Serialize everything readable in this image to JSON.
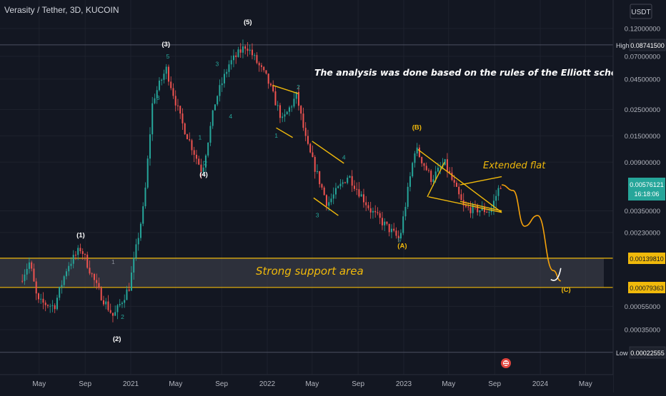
{
  "header": {
    "title": "Verasity / Tether, 3D, KUCOIN"
  },
  "price_axis": {
    "currency": "USDT",
    "ticks": [
      "0.12000000",
      "0.07000000",
      "0.04500000",
      "0.02500000",
      "0.01500000",
      "0.00900000",
      "0.00350000",
      "0.00230000",
      "0.00055000",
      "0.00035000"
    ],
    "high": {
      "label": "High",
      "value": "0.08741500"
    },
    "low": {
      "label": "Low",
      "value": "0.00022555"
    },
    "last": {
      "value": "0.00576121",
      "countdown": "16:18:06"
    },
    "support_upper": "0.00139810",
    "support_lower": "0.00079363"
  },
  "time_axis": {
    "ticks": [
      "May",
      "Sep",
      "2021",
      "May",
      "Sep",
      "2022",
      "May",
      "Sep",
      "2023",
      "May",
      "Sep",
      "2024",
      "May"
    ]
  },
  "chart_data": {
    "type": "candlestick",
    "symbol": "Verasity / Tether",
    "interval": "3D",
    "exchange": "KUCOIN",
    "y_scale": "log",
    "ylim": [
      0.0002,
      0.15
    ],
    "x_range": [
      "2020-04",
      "2024-06"
    ],
    "price_path": [
      [
        "2020-03-15",
        0.0009
      ],
      [
        "2020-04-10",
        0.0013
      ],
      [
        "2020-05-01",
        0.0006
      ],
      [
        "2020-06-15",
        0.00055
      ],
      [
        "2020-07-20",
        0.0012
      ],
      [
        "2020-08-25",
        0.0017
      ],
      [
        "2020-10-10",
        0.00075
      ],
      [
        "2020-11-20",
        0.00045
      ],
      [
        "2021-01-01",
        0.0008
      ],
      [
        "2021-02-10",
        0.004
      ],
      [
        "2021-03-05",
        0.03
      ],
      [
        "2021-04-10",
        0.055
      ],
      [
        "2021-05-20",
        0.02
      ],
      [
        "2021-07-15",
        0.0075
      ],
      [
        "2021-08-20",
        0.03
      ],
      [
        "2021-09-25",
        0.06
      ],
      [
        "2021-11-10",
        0.0874
      ],
      [
        "2022-01-05",
        0.045
      ],
      [
        "2022-02-15",
        0.02
      ],
      [
        "2022-03-25",
        0.033
      ],
      [
        "2022-04-20",
        0.013
      ],
      [
        "2022-06-15",
        0.004
      ],
      [
        "2022-08-10",
        0.007
      ],
      [
        "2022-10-10",
        0.0035
      ],
      [
        "2022-12-25",
        0.002
      ],
      [
        "2023-02-05",
        0.012
      ],
      [
        "2023-03-20",
        0.0065
      ],
      [
        "2023-04-25",
        0.0088
      ],
      [
        "2023-06-15",
        0.0037
      ],
      [
        "2023-08-25",
        0.0035
      ],
      [
        "2023-09-20",
        0.0058
      ]
    ],
    "high": 0.087415,
    "low": 0.00022555,
    "last": 0.00576121,
    "support_zone": [
      0.00079363,
      0.0013981
    ],
    "projection": [
      [
        "2023-09-20",
        0.0058
      ],
      [
        "2023-10-20",
        0.0052
      ],
      [
        "2023-11-20",
        0.0026
      ],
      [
        "2023-12-25",
        0.0032
      ],
      [
        "2024-02-05",
        0.0011
      ],
      [
        "2024-02-25",
        0.0009
      ]
    ],
    "annotations": {
      "note": "The analysis was done based on the rules of the Elliott school and volume analysis",
      "pattern": "Extended flat",
      "support": "Strong support area"
    },
    "wave_labels": [
      {
        "text": "(1)",
        "date": "2020-08-20",
        "price": 0.0021,
        "color": "#ffffff"
      },
      {
        "text": "(2)",
        "date": "2020-11-25",
        "price": 0.00028,
        "color": "#ffffff"
      },
      {
        "text": "(3)",
        "date": "2021-04-05",
        "price": 0.085,
        "color": "#ffffff"
      },
      {
        "text": "(4)",
        "date": "2021-07-15",
        "price": 0.0068,
        "color": "#ffffff"
      },
      {
        "text": "(5)",
        "date": "2021-11-10",
        "price": 0.13,
        "color": "#ffffff"
      },
      {
        "text": "(A)",
        "date": "2022-12-28",
        "price": 0.0017,
        "color": "#f0b90b"
      },
      {
        "text": "(B)",
        "date": "2023-02-05",
        "price": 0.017,
        "color": "#f0b90b"
      },
      {
        "text": "(C)",
        "date": "2024-03-10",
        "price": 0.00073,
        "color": "#f0b90b"
      },
      {
        "text": "1",
        "date": "2020-11-15",
        "price": 0.00125,
        "color": "#8a8e99"
      },
      {
        "text": "2",
        "date": "2020-12-10",
        "price": 0.00043,
        "color": "#26a69a"
      },
      {
        "text": "3",
        "date": "2021-03-15",
        "price": 0.03,
        "color": "#26a69a"
      },
      {
        "text": "5",
        "date": "2021-04-10",
        "price": 0.067,
        "color": "#26a69a"
      },
      {
        "text": "1",
        "date": "2021-07-05",
        "price": 0.014,
        "color": "#26a69a"
      },
      {
        "text": "2",
        "date": "2021-07-20",
        "price": 0.0085,
        "color": "#26a69a"
      },
      {
        "text": "3",
        "date": "2021-08-20",
        "price": 0.058,
        "color": "#26a69a"
      },
      {
        "text": "4",
        "date": "2021-09-25",
        "price": 0.021,
        "color": "#26a69a"
      },
      {
        "text": "1",
        "date": "2022-01-25",
        "price": 0.0145,
        "color": "#26a69a"
      },
      {
        "text": "2",
        "date": "2022-03-25",
        "price": 0.037,
        "color": "#26a69a"
      },
      {
        "text": "3",
        "date": "2022-05-15",
        "price": 0.0031,
        "color": "#26a69a"
      },
      {
        "text": "4",
        "date": "2022-07-25",
        "price": 0.0095,
        "color": "#26a69a"
      },
      {
        "text": "5",
        "date": "2022-12-20",
        "price": 0.0019,
        "color": "#26a69a"
      }
    ],
    "colors": {
      "background": "#131722",
      "up": "#26a69a",
      "down": "#ef5350",
      "annotation": "#f0b90b",
      "support_fill": "#434651",
      "projection": "#f5a20b"
    }
  }
}
